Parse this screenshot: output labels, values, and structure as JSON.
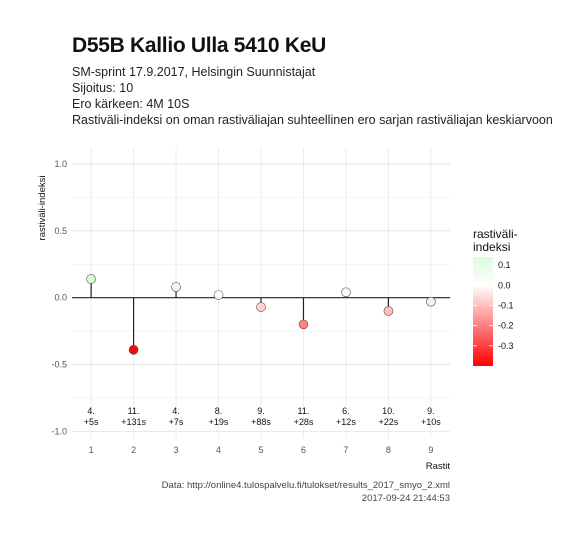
{
  "header": {
    "title": "D55B Kallio Ulla 5410 KeU",
    "subtitle_lines": [
      "SM-sprint 17.9.2017, Helsingin Suunnistajat",
      "Sijoitus: 10",
      "Ero kärkeen: 4M 10S",
      "Rastiväli-indeksi on oman rastiväliajan suhteellinen ero sarjan rastiväliajan keskiarvoon"
    ]
  },
  "chart_data": {
    "type": "scatter",
    "x": [
      1,
      2,
      3,
      4,
      5,
      6,
      7,
      8,
      9
    ],
    "y": [
      0.14,
      -0.39,
      0.08,
      0.02,
      -0.07,
      -0.2,
      0.04,
      -0.1,
      -0.03
    ],
    "point_labels": [
      [
        "4.",
        "+5s"
      ],
      [
        "11.",
        "+131s"
      ],
      [
        "4.",
        "+7s"
      ],
      [
        "8.",
        "+19s"
      ],
      [
        "9.",
        "+88s"
      ],
      [
        "11.",
        "+28s"
      ],
      [
        "6.",
        "+12s"
      ],
      [
        "10.",
        "+22s"
      ],
      [
        "9.",
        "+10s"
      ]
    ],
    "xlabel": "Rastit",
    "ylabel": "rastiväli-indeksi",
    "xlim": [
      0.55,
      9.45
    ],
    "ylim": [
      -1.05,
      1.12
    ],
    "xticks": [
      "1",
      "2",
      "3",
      "4",
      "5",
      "6",
      "7",
      "8",
      "9"
    ],
    "yticks": [
      1.0,
      0.5,
      0.0,
      -0.5,
      -1.0
    ],
    "ytick_labels": [
      "1.0",
      "0.5",
      "0.0",
      "-0.5",
      "-1.0"
    ],
    "grid": true,
    "legend": {
      "title_lines": [
        "rastiväli-",
        "indeksi"
      ],
      "placement": "right",
      "ticks": [
        0.1,
        0.0,
        -0.1,
        -0.2,
        -0.3
      ],
      "tick_labels": [
        "0.1",
        "0.0",
        "-0.1",
        "-0.2",
        "-0.3"
      ],
      "range": [
        -0.4,
        0.14
      ],
      "colors": {
        "high": "#d9fcd9",
        "mid": "#ffffff",
        "low": "#ff0000"
      }
    }
  },
  "caption": {
    "source": "Data: http://online4.tulospalvelu.fi/tulokset/results_2017_smyo_2.xml",
    "timestamp": "2017-09-24 21:44:53"
  }
}
